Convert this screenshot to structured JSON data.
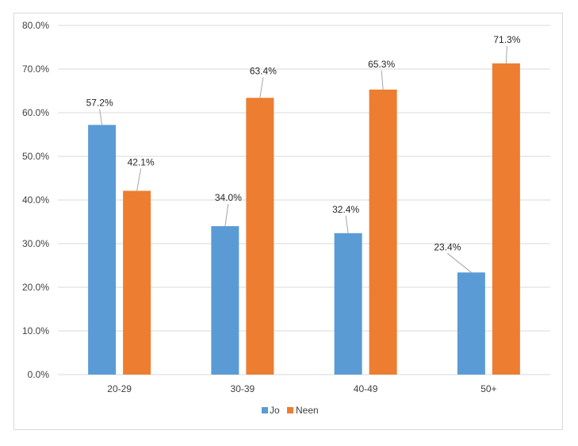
{
  "chart_data": {
    "type": "bar",
    "title": "",
    "xlabel": "",
    "ylabel": "",
    "categories": [
      "20-29",
      "30-39",
      "40-49",
      "50+"
    ],
    "series": [
      {
        "name": "Jo",
        "color": "#5b9bd5",
        "values": [
          57.2,
          34.0,
          32.4,
          23.4
        ]
      },
      {
        "name": "Neen",
        "color": "#ed7d31",
        "values": [
          42.1,
          63.4,
          65.3,
          71.3
        ]
      }
    ],
    "data_labels": [
      [
        "57.2%",
        "34.0%",
        "32.4%",
        "23.4%"
      ],
      [
        "42.1%",
        "63.4%",
        "65.3%",
        "71.3%"
      ]
    ],
    "ylim": [
      0,
      80
    ],
    "yticks": [
      "0.0%",
      "10.0%",
      "20.0%",
      "30.0%",
      "40.0%",
      "50.0%",
      "60.0%",
      "70.0%",
      "80.0%"
    ],
    "grid": true,
    "legend_position": "bottom"
  }
}
